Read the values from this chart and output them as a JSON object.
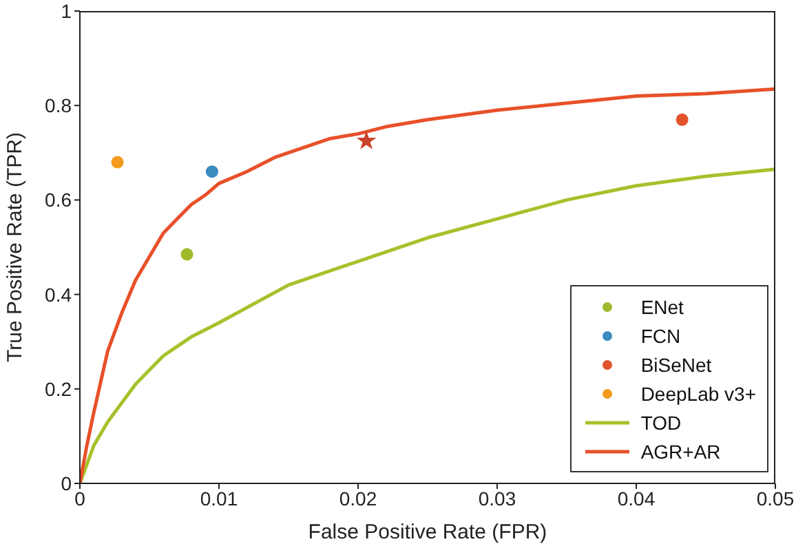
{
  "chart_data": {
    "type": "scatter",
    "xlabel": "False Positive Rate (FPR)",
    "ylabel": "True Positive Rate (TPR)",
    "xlim": [
      0,
      0.05
    ],
    "xticks": [
      0,
      0.01,
      0.02,
      0.03,
      0.04,
      0.05
    ],
    "ylim": [
      0,
      1
    ],
    "yticks": [
      0,
      0.2,
      0.4,
      0.6,
      0.8,
      1
    ],
    "grid": false,
    "legend": "bottom right",
    "marker": "circle",
    "series": [
      {
        "name": "ENet",
        "color": "#9fba2a",
        "x": [
          0.0077
        ],
        "values": [
          0.485
        ]
      },
      {
        "name": "FCN",
        "color": "#3b8bbf",
        "x": [
          0.0095
        ],
        "values": [
          0.66
        ]
      },
      {
        "name": "BiSeNet",
        "color": "#e0532b",
        "x": [
          0.0433
        ],
        "values": [
          0.77
        ]
      },
      {
        "name": "DeepLab v3+",
        "color": "#f39b1c",
        "x": [
          0.0027
        ],
        "values": [
          0.68
        ]
      },
      {
        "name": "TOD",
        "type": "line",
        "color": "#a5c22c",
        "marker": "none",
        "x": [
          0,
          0.001,
          0.002,
          0.004,
          0.006,
          0.008,
          0.01,
          0.015,
          0.02,
          0.025,
          0.03,
          0.035,
          0.04,
          0.045,
          0.05
        ],
        "values": [
          0,
          0.08,
          0.13,
          0.21,
          0.27,
          0.31,
          0.34,
          0.42,
          0.47,
          0.52,
          0.56,
          0.6,
          0.63,
          0.65,
          0.665
        ]
      },
      {
        "name": "AGR+AR",
        "type": "line",
        "color": "#e8502a",
        "marker": "none",
        "x": [
          0,
          0.0005,
          0.001,
          0.002,
          0.003,
          0.004,
          0.005,
          0.006,
          0.007,
          0.008,
          0.009,
          0.01,
          0.012,
          0.014,
          0.016,
          0.018,
          0.02,
          0.022,
          0.025,
          0.03,
          0.035,
          0.04,
          0.045,
          0.05
        ],
        "values": [
          0,
          0.08,
          0.15,
          0.28,
          0.36,
          0.43,
          0.48,
          0.53,
          0.56,
          0.59,
          0.61,
          0.635,
          0.66,
          0.69,
          0.71,
          0.73,
          0.74,
          0.755,
          0.77,
          0.79,
          0.805,
          0.82,
          0.825,
          0.835
        ]
      },
      {
        "color": "#c8452a",
        "marker": "star",
        "x": [
          0.0206
        ],
        "values": [
          0.725
        ]
      }
    ]
  }
}
